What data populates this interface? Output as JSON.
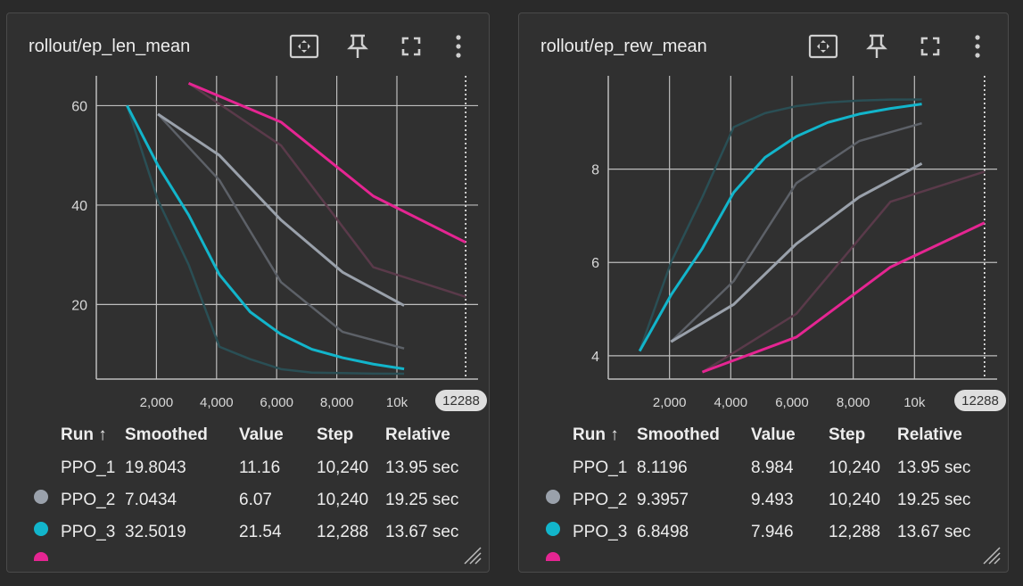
{
  "colors": {
    "PPO_1": "#9aa1ab",
    "PPO_2": "#12b5cb",
    "PPO_3": "#e52592",
    "PPO_1_raw": "#5d6168",
    "PPO_2_raw": "#2a4f55",
    "PPO_3_raw": "#5a3a4a",
    "grid": "#bdbdbd",
    "background": "#303030"
  },
  "icons": [
    "fit-to-data-icon",
    "pin-icon",
    "fullscreen-icon",
    "more-vert-icon",
    "resize-handle-icon"
  ],
  "table_headers": {
    "run": "Run ↑",
    "smoothed": "Smoothed",
    "value": "Value",
    "step": "Step",
    "relative": "Relative"
  },
  "chart_data": [
    {
      "type": "line",
      "title": "rollout/ep_len_mean",
      "x_ticks": [
        "2,000",
        "4,000",
        "6,000",
        "8,000",
        "10k"
      ],
      "x_tick_values": [
        2000,
        4000,
        6000,
        8000,
        10000
      ],
      "y_ticks": [
        20,
        40,
        60
      ],
      "xlim": [
        0,
        12700
      ],
      "ylim": [
        5,
        66
      ],
      "hover_step_label": "12288",
      "hover_step": 12288,
      "series": [
        {
          "name": "PPO_1",
          "x": [
            2048,
            4096,
            6144,
            8192,
            10240
          ],
          "smoothed": [
            58.3,
            50.0,
            37.0,
            26.5,
            19.8
          ],
          "raw": [
            58.3,
            45.0,
            24.5,
            14.5,
            11.16
          ]
        },
        {
          "name": "PPO_2",
          "x": [
            1024,
            2048,
            3072,
            4096,
            5120,
            6144,
            7168,
            8192,
            9216,
            10240
          ],
          "smoothed": [
            60.0,
            48.0,
            38.0,
            26.0,
            18.5,
            14.0,
            11.0,
            9.3,
            8.0,
            7.0434
          ],
          "raw": [
            60.0,
            41.0,
            28.0,
            11.5,
            9.0,
            7.0,
            6.3,
            6.2,
            6.1,
            6.07
          ]
        },
        {
          "name": "PPO_3",
          "x": [
            3072,
            6144,
            9216,
            12288
          ],
          "smoothed": [
            64.5,
            56.7,
            41.8,
            32.5019
          ],
          "raw": [
            64.5,
            52.0,
            27.5,
            21.54
          ]
        }
      ],
      "rows": [
        {
          "run": "PPO_1",
          "smoothed": "19.8043",
          "value": "11.16",
          "step": "10,240",
          "relative": "13.95 sec"
        },
        {
          "run": "PPO_2",
          "smoothed": "7.0434",
          "value": "6.07",
          "step": "10,240",
          "relative": "19.25 sec"
        },
        {
          "run": "PPO_3",
          "smoothed": "32.5019",
          "value": "21.54",
          "step": "12,288",
          "relative": "13.67 sec"
        }
      ]
    },
    {
      "type": "line",
      "title": "rollout/ep_rew_mean",
      "x_ticks": [
        "2,000",
        "4,000",
        "6,000",
        "8,000",
        "10k"
      ],
      "x_tick_values": [
        2000,
        4000,
        6000,
        8000,
        10000
      ],
      "y_ticks": [
        4,
        6,
        8
      ],
      "xlim": [
        0,
        12700
      ],
      "ylim": [
        3.5,
        10.0
      ],
      "hover_step_label": "12288",
      "hover_step": 12288,
      "series": [
        {
          "name": "PPO_1",
          "x": [
            2048,
            4096,
            6144,
            8192,
            10240
          ],
          "smoothed": [
            4.3,
            5.1,
            6.4,
            7.4,
            8.1196
          ],
          "raw": [
            4.3,
            5.6,
            7.7,
            8.6,
            8.984
          ]
        },
        {
          "name": "PPO_2",
          "x": [
            1024,
            2048,
            3072,
            4096,
            5120,
            6144,
            7168,
            8192,
            9216,
            10240
          ],
          "smoothed": [
            4.1,
            5.3,
            6.3,
            7.5,
            8.25,
            8.7,
            9.0,
            9.18,
            9.3,
            9.3957
          ],
          "raw": [
            4.1,
            6.0,
            7.4,
            8.9,
            9.2,
            9.35,
            9.43,
            9.47,
            9.49,
            9.493
          ]
        },
        {
          "name": "PPO_3",
          "x": [
            3072,
            6144,
            9216,
            12288
          ],
          "smoothed": [
            3.65,
            4.4,
            5.9,
            6.8498
          ],
          "raw": [
            3.65,
            4.9,
            7.3,
            7.946
          ]
        }
      ],
      "rows": [
        {
          "run": "PPO_1",
          "smoothed": "8.1196",
          "value": "8.984",
          "step": "10,240",
          "relative": "13.95 sec"
        },
        {
          "run": "PPO_2",
          "smoothed": "9.3957",
          "value": "9.493",
          "step": "10,240",
          "relative": "19.25 sec"
        },
        {
          "run": "PPO_3",
          "smoothed": "6.8498",
          "value": "7.946",
          "step": "12,288",
          "relative": "13.67 sec"
        }
      ]
    }
  ]
}
